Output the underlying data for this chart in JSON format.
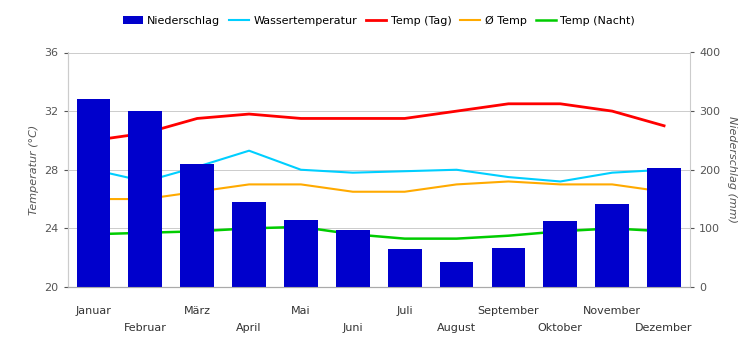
{
  "months": [
    "Januar",
    "Februar",
    "März",
    "April",
    "Mai",
    "Juni",
    "Juli",
    "August",
    "September",
    "Oktober",
    "November",
    "Dezember"
  ],
  "niederschlag": [
    320,
    300,
    210,
    145,
    114,
    97,
    64,
    43,
    66,
    112,
    142,
    203
  ],
  "wassertemperatur": [
    28.0,
    27.2,
    28.2,
    29.3,
    28.0,
    27.8,
    27.9,
    28.0,
    27.5,
    27.2,
    27.8,
    28.0
  ],
  "temp_tag": [
    30.0,
    30.5,
    31.5,
    31.8,
    31.5,
    31.5,
    31.5,
    32.0,
    32.5,
    32.5,
    32.0,
    31.0
  ],
  "avg_temp": [
    26.0,
    26.0,
    26.5,
    27.0,
    27.0,
    26.5,
    26.5,
    27.0,
    27.2,
    27.0,
    27.0,
    26.5
  ],
  "temp_nacht": [
    23.6,
    23.7,
    23.8,
    24.0,
    24.1,
    23.6,
    23.3,
    23.3,
    23.5,
    23.8,
    24.0,
    23.8
  ],
  "bar_color": "#0000cc",
  "wassertemp_color": "#00cfff",
  "temp_tag_color": "#ff0000",
  "avg_temp_color": "#ffaa00",
  "temp_nacht_color": "#00cc00",
  "ylabel_left": "Temperatur (°C)",
  "ylabel_right": "Niederschlag (mm)",
  "ylim_left": [
    20,
    36
  ],
  "ylim_right": [
    0,
    400
  ],
  "yticks_left": [
    20,
    24,
    28,
    32,
    36
  ],
  "yticks_right": [
    0,
    100,
    200,
    300,
    400
  ],
  "legend_labels": [
    "Niederschlag",
    "Wassertemperatur",
    "Temp (Tag)",
    "Ø Temp",
    "Temp (Nacht)"
  ],
  "background_color": "#ffffff",
  "grid_color": "#cccccc",
  "tick_color": "#555555",
  "label_fontsize": 8,
  "legend_fontsize": 8
}
